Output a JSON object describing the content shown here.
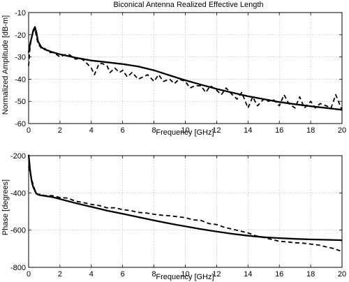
{
  "chart_data": [
    {
      "type": "line",
      "title": "Biconical Antenna Realized Effective Length",
      "xlabel": "Frequency [GHz]",
      "ylabel": "Normalized Amplitude [dB-m]",
      "xlim": [
        0,
        20
      ],
      "ylim": [
        -60,
        -10
      ],
      "xticks": [
        0,
        2,
        4,
        6,
        8,
        10,
        12,
        14,
        16,
        18,
        20
      ],
      "yticks": [
        -60,
        -50,
        -40,
        -30,
        -20,
        -10
      ],
      "grid": true,
      "series": [
        {
          "style": "solid",
          "x": [
            0.0,
            0.1,
            0.2,
            0.3,
            0.4,
            0.5,
            0.6,
            0.8,
            1.0,
            1.5,
            2.0,
            3.0,
            4.0,
            5.0,
            6.0,
            7.0,
            8.0,
            9.0,
            10.0,
            11.0,
            12.0,
            13.0,
            14.0,
            15.0,
            16.0,
            17.0,
            18.0,
            19.0,
            20.0
          ],
          "values": [
            -28,
            -24,
            -21,
            -18,
            -16.5,
            -19,
            -23,
            -25.5,
            -26.5,
            -27.8,
            -28.8,
            -30.3,
            -31.6,
            -32.4,
            -33.2,
            -34.3,
            -36.0,
            -38.3,
            -40.5,
            -42.5,
            -44.4,
            -46.1,
            -47.7,
            -49.0,
            -50.3,
            -51.3,
            -52.2,
            -53.0,
            -53.8
          ]
        },
        {
          "style": "dashed",
          "x": [
            0.0,
            0.1,
            0.2,
            0.3,
            0.4,
            0.5,
            0.6,
            0.8,
            1.0,
            1.3,
            1.6,
            2.0,
            2.3,
            2.6,
            3.0,
            3.3,
            3.6,
            4.0,
            4.2,
            4.5,
            4.7,
            5.0,
            5.2,
            5.5,
            5.8,
            6.0,
            6.3,
            6.6,
            7.0,
            7.3,
            7.6,
            8.0,
            8.3,
            8.6,
            9.0,
            9.3,
            9.6,
            10.0,
            10.3,
            10.6,
            11.0,
            11.3,
            11.6,
            12.0,
            12.3,
            12.6,
            13.0,
            13.3,
            13.6,
            14.0,
            14.3,
            14.6,
            15.0,
            15.3,
            15.6,
            16.0,
            16.3,
            16.6,
            17.0,
            17.3,
            17.6,
            18.0,
            18.3,
            18.6,
            19.0,
            19.3,
            19.6,
            20.0
          ],
          "values": [
            -34,
            -25,
            -21,
            -19,
            -17,
            -21,
            -24,
            -26,
            -26,
            -28,
            -28,
            -30,
            -29,
            -29,
            -31,
            -30.5,
            -32,
            -35,
            -38,
            -33,
            -33,
            -34,
            -37,
            -35,
            -37,
            -36,
            -39,
            -37,
            -40,
            -39,
            -38,
            -41,
            -38,
            -41,
            -40,
            -42,
            -40,
            -41,
            -44,
            -43,
            -43,
            -46,
            -43,
            -45,
            -47,
            -44,
            -47,
            -49,
            -46,
            -53,
            -48,
            -52,
            -49,
            -50,
            -49,
            -52,
            -47,
            -51,
            -53,
            -48,
            -53,
            -50,
            -53,
            -51,
            -52,
            -53,
            -47,
            -54
          ]
        }
      ]
    },
    {
      "type": "line",
      "title": "",
      "xlabel": "Frequency [GHz]",
      "ylabel": "Phase [degrees]",
      "xlim": [
        0,
        20
      ],
      "ylim": [
        -800,
        -200
      ],
      "xticks": [
        0,
        2,
        4,
        6,
        8,
        10,
        12,
        14,
        16,
        18,
        20
      ],
      "yticks": [
        -800,
        -600,
        -400,
        -200
      ],
      "grid": true,
      "series": [
        {
          "style": "solid",
          "x": [
            0.0,
            0.1,
            0.2,
            0.3,
            0.5,
            0.7,
            1.0,
            1.5,
            2.0,
            3.0,
            4.0,
            5.0,
            6.0,
            7.0,
            8.0,
            9.0,
            10.0,
            11.0,
            12.0,
            13.0,
            14.0,
            15.0,
            16.0,
            17.0,
            18.0,
            19.0,
            20.0
          ],
          "values": [
            -195,
            -280,
            -340,
            -370,
            -405,
            -412,
            -416,
            -422,
            -433,
            -455,
            -475,
            -495,
            -512,
            -530,
            -548,
            -565,
            -580,
            -595,
            -608,
            -620,
            -630,
            -638,
            -643,
            -647,
            -650,
            -652,
            -654
          ]
        },
        {
          "style": "dashed",
          "x": [
            0.0,
            0.2,
            0.4,
            0.6,
            0.8,
            1.0,
            1.5,
            2.0,
            2.5,
            3.0,
            3.5,
            4.0,
            4.5,
            5.0,
            5.5,
            6.0,
            6.5,
            7.0,
            7.5,
            8.0,
            8.5,
            9.0,
            9.5,
            10.0,
            10.5,
            11.0,
            11.5,
            12.0,
            12.5,
            13.0,
            13.5,
            14.0,
            14.5,
            15.0,
            15.5,
            16.0,
            16.5,
            17.0,
            17.5,
            18.0,
            18.5,
            19.0,
            19.5,
            20.0
          ],
          "values": [
            -260,
            -330,
            -385,
            -410,
            -405,
            -415,
            -415,
            -425,
            -428,
            -445,
            -452,
            -462,
            -468,
            -480,
            -480,
            -490,
            -495,
            -505,
            -508,
            -515,
            -520,
            -523,
            -528,
            -533,
            -545,
            -548,
            -565,
            -570,
            -585,
            -595,
            -605,
            -615,
            -630,
            -640,
            -650,
            -660,
            -663,
            -668,
            -670,
            -675,
            -680,
            -690,
            -700,
            -715
          ]
        }
      ]
    }
  ]
}
